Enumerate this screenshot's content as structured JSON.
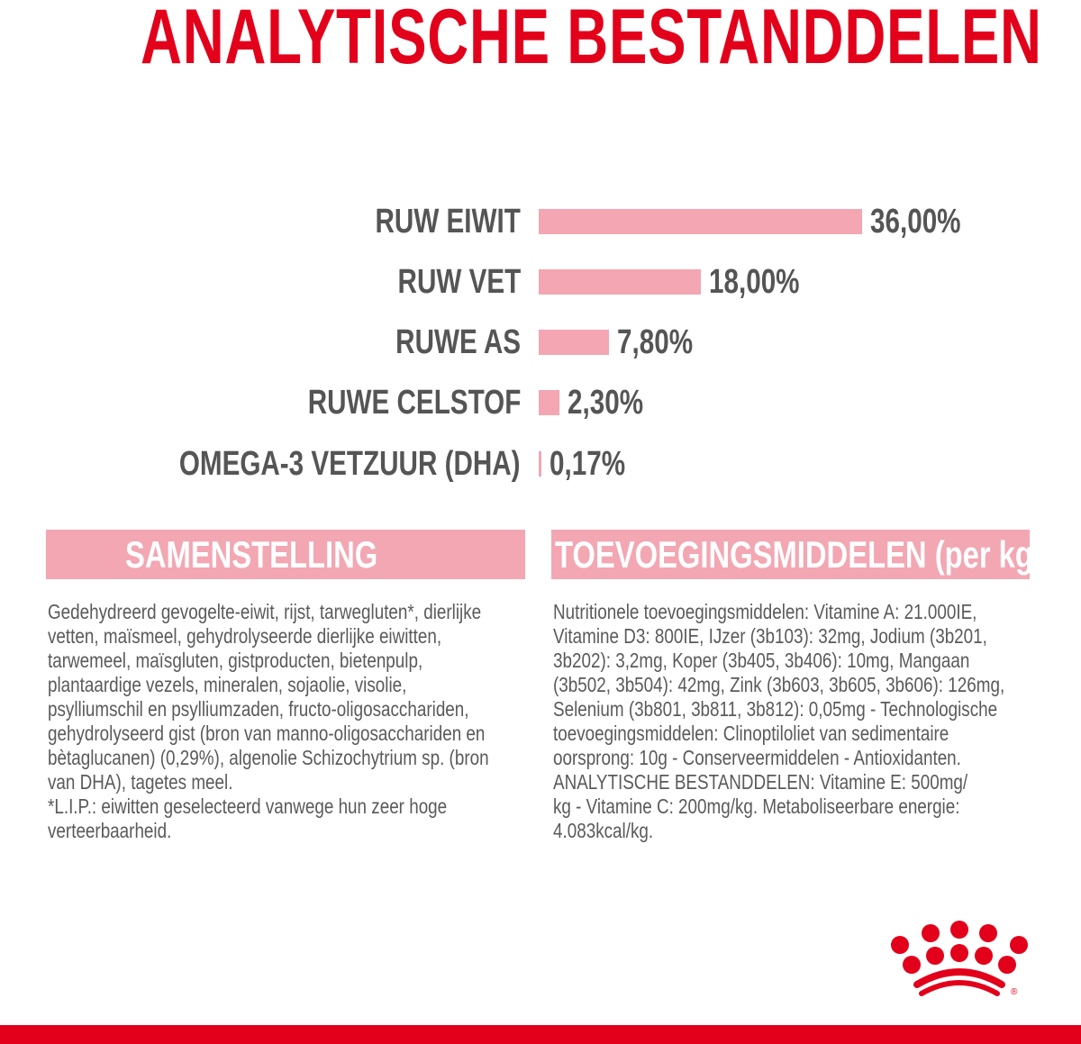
{
  "colors": {
    "brand_red": "#e2001a",
    "bar_pink": "#f4a6b3",
    "header_pink": "#f2a7b3",
    "text_gray": "#555555"
  },
  "chart_data": {
    "type": "bar",
    "orientation": "horizontal",
    "title": "ANALYTISCHE BESTANDDELEN",
    "categories": [
      "RUW EIWIT",
      "RUW VET",
      "RUWE AS",
      "RUWE CELSTOF",
      "OMEGA-3 VETZUUR (DHA)"
    ],
    "values": [
      36.0,
      18.0,
      7.8,
      2.3,
      0.17
    ],
    "data_labels": [
      "36,00%",
      "18,00%",
      "7,80%",
      "2,30%",
      "0,17%"
    ],
    "unit": "%",
    "grid": false,
    "legend": "none"
  },
  "composition": {
    "heading": "SAMENSTELLING",
    "lines": [
      "Gedehydreerd gevogelte-eiwit, rijst, tarwegluten*, dierlijke",
      "vetten, maïsmeel, gehydrolyseerde dierlijke eiwitten,",
      "tarwemeel, maïsgluten, gistproducten, bietenpulp,",
      "plantaardige vezels, mineralen, sojaolie, visolie,",
      "psylliumschil en psylliumzaden, fructo-oligosacchariden,",
      "gehydrolyseerd gist (bron van manno-oligosacchariden en",
      "bètaglucanen) (0,29%), algenolie Schizochytrium sp. (bron",
      "van DHA), tagetes meel.",
      "*L.I.P.: eiwitten geselecteerd vanwege hun zeer hoge",
      "verteerbaarheid."
    ]
  },
  "additives": {
    "heading": "TOEVOEGINGSMIDDELEN (per kg)",
    "lines": [
      "Nutritionele toevoegingsmiddelen: Vitamine A: 21.000IE,",
      "Vitamine D3: 800IE, IJzer (3b103): 32mg, Jodium (3b201,",
      "3b202): 3,2mg, Koper (3b405, 3b406): 10mg, Mangaan",
      "(3b502, 3b504): 42mg, Zink (3b603, 3b605, 3b606): 126mg,",
      "Selenium (3b801, 3b811, 3b812): 0,05mg - Technologische",
      "toevoegingsmiddelen: Clinoptiloliet van sedimentaire",
      "oorsprong: 10g - Conserveermiddelen - Antioxidanten.",
      "ANALYTISCHE BESTANDDELEN: Vitamine E: 500mg/",
      "kg - Vitamine C: 200mg/kg. Metaboliseerbare energie:",
      "4.083kcal/kg."
    ]
  },
  "logo": {
    "name": "royal-canin-crown-logo",
    "mark": "®"
  }
}
